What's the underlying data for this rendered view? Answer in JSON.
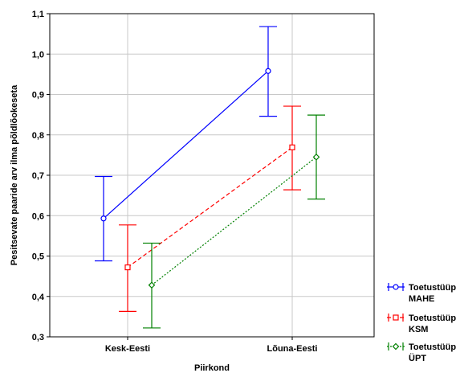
{
  "chart_data": {
    "type": "line",
    "title": "",
    "xlabel": "Piirkond",
    "ylabel": "Pesitsevate paaride arv ilma põldlõokeseta",
    "categories": [
      "Kesk-Eesti",
      "Lõuna-Eesti"
    ],
    "ylim": [
      0.3,
      1.1
    ],
    "yticks": [
      "0,3",
      "0,4",
      "0,5",
      "0,6",
      "0,7",
      "0,8",
      "0,9",
      "1,0",
      "1,1"
    ],
    "ytick_values": [
      0.3,
      0.4,
      0.5,
      0.6,
      0.7,
      0.8,
      0.9,
      1.0,
      1.1
    ],
    "grid": true,
    "legend_position": "bottom-right",
    "series": [
      {
        "legend_line1": "Toetustüüp",
        "legend_line2": "MAHE",
        "color": "#0000ff",
        "marker": "circle",
        "line_style": "solid",
        "values": [
          0.593,
          0.958
        ],
        "lower": [
          0.488,
          0.846
        ],
        "upper": [
          0.697,
          1.068
        ]
      },
      {
        "legend_line1": "Toetustüüp",
        "legend_line2": "KSM",
        "color": "#ff0000",
        "marker": "square",
        "line_style": "dashed",
        "values": [
          0.472,
          0.769
        ],
        "lower": [
          0.363,
          0.664
        ],
        "upper": [
          0.577,
          0.871
        ]
      },
      {
        "legend_line1": "Toetustüüp",
        "legend_line2": "ÜPT",
        "color": "#008000",
        "marker": "diamond",
        "line_style": "dotted",
        "values": [
          0.428,
          0.745
        ],
        "lower": [
          0.322,
          0.641
        ],
        "upper": [
          0.532,
          0.849
        ]
      }
    ]
  }
}
